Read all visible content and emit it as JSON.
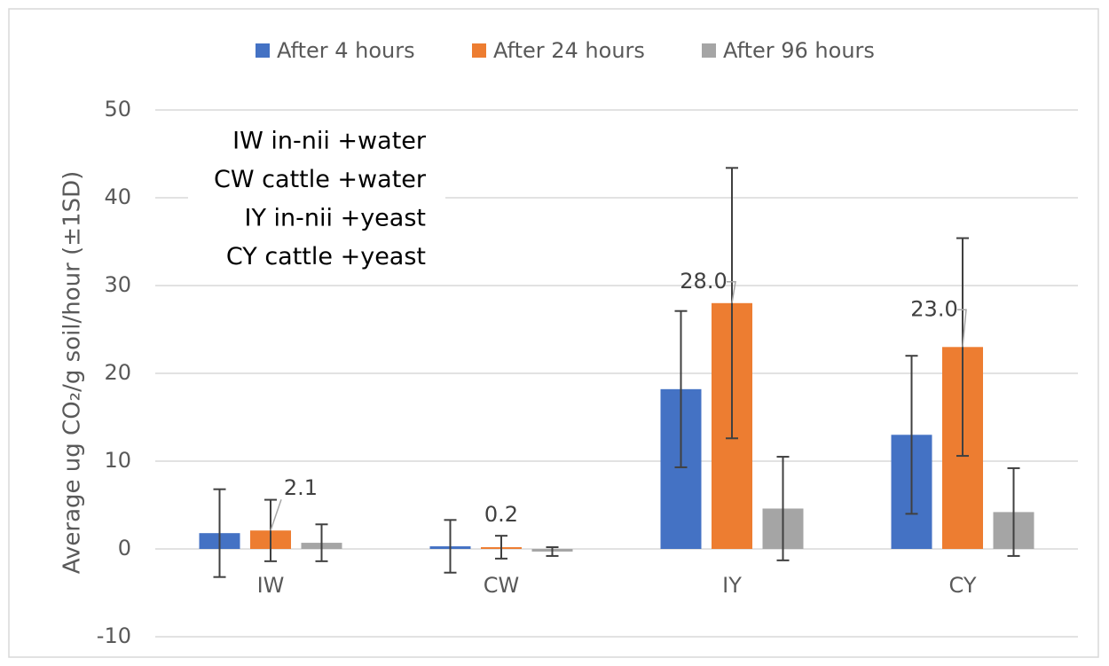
{
  "chart_data": {
    "type": "bar",
    "y_label": "Average ug CO₂/g soil/hour  (±1SD)",
    "annotations": [
      "IW in-nii +water",
      "CW cattle +water",
      "IY in-nii +yeast",
      "CY cattle +yeast"
    ],
    "categories": [
      "IW",
      "CW",
      "IY",
      "CY"
    ],
    "series": [
      {
        "name": "After 4 hours",
        "color": "#4472c4",
        "values": [
          1.8,
          0.3,
          18.2,
          13.0
        ],
        "errors": [
          5.0,
          3.0,
          8.9,
          9.0
        ]
      },
      {
        "name": "After 24 hours",
        "color": "#ed7d31",
        "values": [
          2.1,
          0.2,
          28.0,
          23.0
        ],
        "errors": [
          3.5,
          1.3,
          15.4,
          12.4
        ],
        "value_labels": [
          "2.1",
          "0.2",
          "28.0",
          "23.0"
        ]
      },
      {
        "name": "After 96 hours",
        "color": "#a5a5a5",
        "values": [
          0.7,
          -0.3,
          4.6,
          4.2
        ],
        "errors": [
          2.1,
          0.5,
          5.9,
          5.0
        ]
      }
    ],
    "ylim": [
      -10,
      50
    ],
    "yticks": [
      -10,
      0,
      10,
      20,
      30,
      40,
      50
    ],
    "grid": true,
    "legend": "top"
  }
}
